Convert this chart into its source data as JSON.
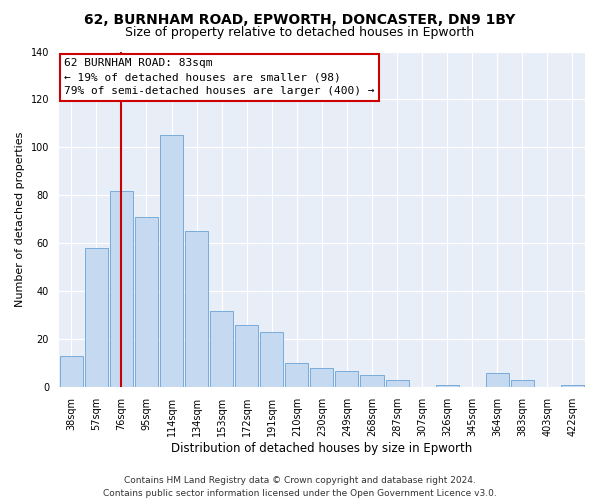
{
  "title": "62, BURNHAM ROAD, EPWORTH, DONCASTER, DN9 1BY",
  "subtitle": "Size of property relative to detached houses in Epworth",
  "xlabel": "Distribution of detached houses by size in Epworth",
  "ylabel": "Number of detached properties",
  "bar_labels": [
    "38sqm",
    "57sqm",
    "76sqm",
    "95sqm",
    "114sqm",
    "134sqm",
    "153sqm",
    "172sqm",
    "191sqm",
    "210sqm",
    "230sqm",
    "249sqm",
    "268sqm",
    "287sqm",
    "307sqm",
    "326sqm",
    "345sqm",
    "364sqm",
    "383sqm",
    "403sqm",
    "422sqm"
  ],
  "bar_heights": [
    13,
    58,
    82,
    71,
    105,
    65,
    32,
    26,
    23,
    10,
    8,
    7,
    5,
    3,
    0,
    1,
    0,
    6,
    3,
    0,
    1
  ],
  "bar_color": "#c5d9f0",
  "bar_edge_color": "#6ba3d6",
  "vline_x": 2,
  "vline_color": "#cc0000",
  "ylim": [
    0,
    140
  ],
  "yticks": [
    0,
    20,
    40,
    60,
    80,
    100,
    120,
    140
  ],
  "annotation_title": "62 BURNHAM ROAD: 83sqm",
  "annotation_line1": "← 19% of detached houses are smaller (98)",
  "annotation_line2": "79% of semi-detached houses are larger (400) →",
  "annotation_box_facecolor": "#ffffff",
  "annotation_box_edgecolor": "#cc0000",
  "plot_bg_color": "#e8eef8",
  "fig_bg_color": "#ffffff",
  "title_fontsize": 10,
  "subtitle_fontsize": 9,
  "xlabel_fontsize": 8.5,
  "ylabel_fontsize": 8,
  "tick_fontsize": 7,
  "annotation_fontsize": 8,
  "footer_fontsize": 6.5,
  "footer_line1": "Contains HM Land Registry data © Crown copyright and database right 2024.",
  "footer_line2": "Contains public sector information licensed under the Open Government Licence v3.0."
}
